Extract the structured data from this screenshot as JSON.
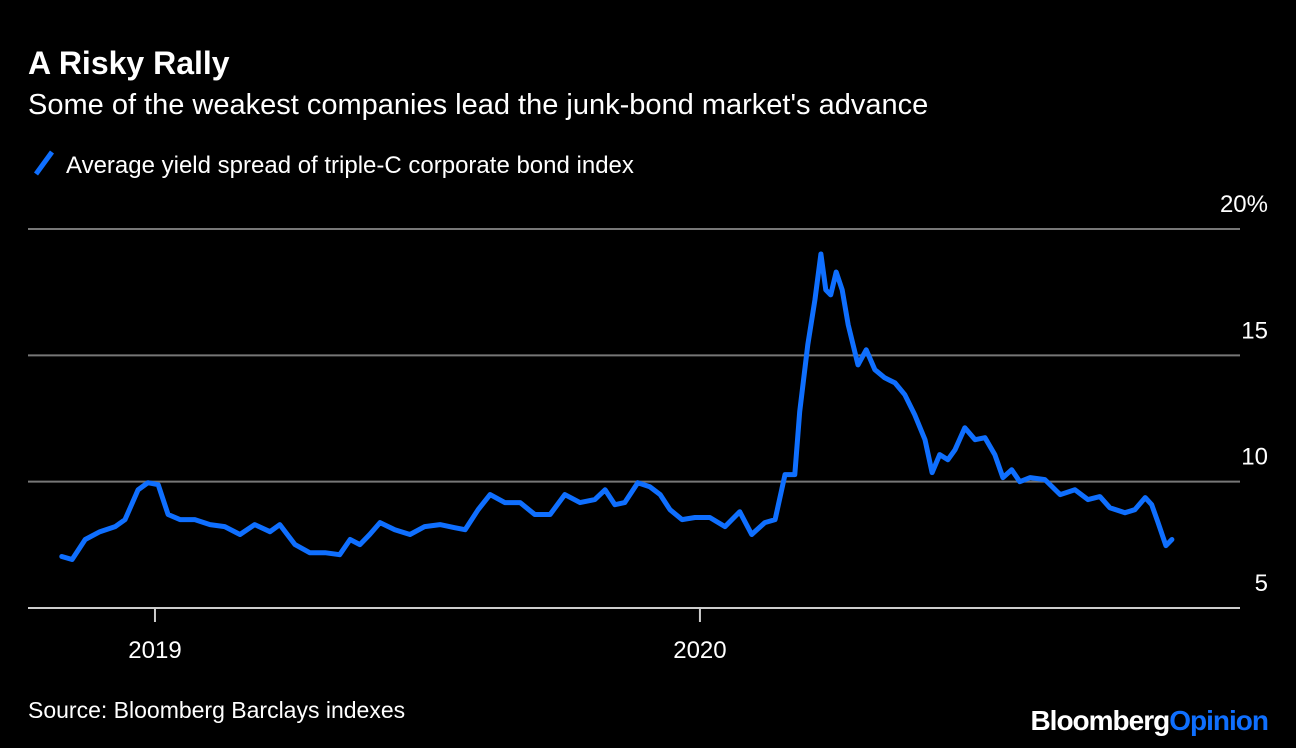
{
  "chart_data": {
    "type": "line",
    "title": "A Risky Rally",
    "subtitle": "Some of the weakest companies lead the junk-bond market's advance",
    "source": "Source: Bloomberg Barclays indexes",
    "logo": [
      "Bloomberg",
      "Opinion"
    ],
    "x": [
      2018.829,
      2018.848,
      2018.872,
      2018.899,
      2018.927,
      2018.945,
      2018.969,
      2018.987,
      2019.006,
      2019.024,
      2019.046,
      2019.073,
      2019.101,
      2019.128,
      2019.156,
      2019.183,
      2019.211,
      2019.229,
      2019.257,
      2019.284,
      2019.312,
      2019.339,
      2019.358,
      2019.376,
      2019.394,
      2019.413,
      2019.44,
      2019.468,
      2019.495,
      2019.523,
      2019.55,
      2019.569,
      2019.593,
      2019.615,
      2019.642,
      2019.67,
      2019.697,
      2019.725,
      2019.752,
      2019.78,
      2019.807,
      2019.826,
      2019.844,
      2019.862,
      2019.886,
      2019.908,
      2019.927,
      2019.945,
      2019.967,
      2019.991,
      2020.018,
      2020.046,
      2020.073,
      2020.095,
      2020.119,
      2020.138,
      2020.156,
      2020.174,
      2020.183,
      2020.198,
      2020.211,
      2020.222,
      2020.231,
      2020.24,
      2020.25,
      2020.261,
      2020.272,
      2020.29,
      2020.305,
      2020.321,
      2020.339,
      2020.358,
      2020.376,
      2020.394,
      2020.413,
      2020.426,
      2020.44,
      2020.455,
      2020.468,
      2020.486,
      2020.505,
      2020.523,
      2020.541,
      2020.556,
      2020.572,
      2020.587,
      2020.606,
      2020.633,
      2020.661,
      2020.688,
      2020.712,
      2020.734,
      2020.752,
      2020.78,
      2020.798,
      2020.817,
      2020.829,
      2020.84,
      2020.855,
      2020.866
    ],
    "series": [
      {
        "name": "Average yield spread of triple-C corporate bond index",
        "color": "#0f6fff",
        "values": [
          7.04,
          6.92,
          7.71,
          8.02,
          8.22,
          8.5,
          9.68,
          9.96,
          9.88,
          8.7,
          8.5,
          8.5,
          8.3,
          8.22,
          7.91,
          8.3,
          8.02,
          8.3,
          7.51,
          7.19,
          7.19,
          7.11,
          7.71,
          7.51,
          7.91,
          8.38,
          8.1,
          7.91,
          8.22,
          8.3,
          8.18,
          8.1,
          8.89,
          9.49,
          9.17,
          9.17,
          8.7,
          8.7,
          9.49,
          9.17,
          9.29,
          9.68,
          9.09,
          9.17,
          9.96,
          9.8,
          9.49,
          8.89,
          8.5,
          8.58,
          8.58,
          8.22,
          8.81,
          7.91,
          8.38,
          8.5,
          10.28,
          10.28,
          12.77,
          15.42,
          17.19,
          19.01,
          17.59,
          17.39,
          18.3,
          17.59,
          16.21,
          14.62,
          15.22,
          14.43,
          14.11,
          13.91,
          13.44,
          12.65,
          11.66,
          10.36,
          11.07,
          10.87,
          11.26,
          12.13,
          11.66,
          11.74,
          11.07,
          10.16,
          10.47,
          10.0,
          10.16,
          10.08,
          9.49,
          9.68,
          9.29,
          9.41,
          8.97,
          8.77,
          8.89,
          9.37,
          9.09,
          8.42,
          7.47,
          7.71
        ]
      }
    ],
    "xlim": [
      2018.767,
      2020.991
    ],
    "xticks": [
      2019,
      2020
    ],
    "ylim": [
      5,
      20
    ],
    "yticks": [
      5,
      10,
      15,
      {
        "value": 20,
        "label": "20%"
      }
    ],
    "grid": true
  }
}
